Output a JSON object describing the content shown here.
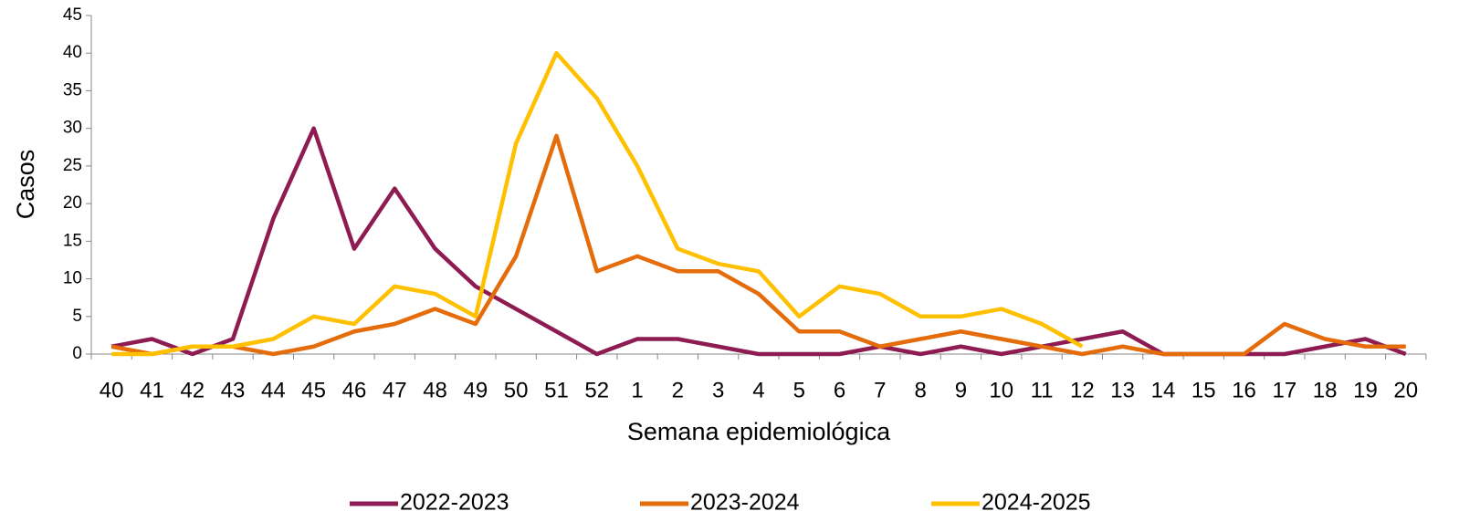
{
  "chart_data": {
    "type": "line",
    "x_label": "Semana epidemiológica",
    "y_label": "Casos",
    "categories": [
      "40",
      "41",
      "42",
      "43",
      "44",
      "45",
      "46",
      "47",
      "48",
      "49",
      "50",
      "51",
      "52",
      "1",
      "2",
      "3",
      "4",
      "5",
      "6",
      "7",
      "8",
      "9",
      "10",
      "11",
      "12",
      "13",
      "14",
      "15",
      "16",
      "17",
      "18",
      "19",
      "20"
    ],
    "series": [
      {
        "name": "2022-2023",
        "color": "#8e1b52",
        "values": [
          1,
          2,
          0,
          2,
          18,
          30,
          14,
          22,
          14,
          9,
          6,
          3,
          0,
          2,
          2,
          1,
          0,
          0,
          0,
          1,
          0,
          1,
          0,
          1,
          2,
          3,
          0,
          0,
          0,
          0,
          1,
          2,
          0
        ]
      },
      {
        "name": "2023-2024",
        "color": "#e46c0a",
        "values": [
          1,
          0,
          1,
          1,
          0,
          1,
          3,
          4,
          6,
          4,
          13,
          29,
          11,
          13,
          11,
          11,
          8,
          3,
          3,
          1,
          2,
          3,
          2,
          1,
          0,
          1,
          0,
          0,
          0,
          4,
          2,
          1,
          1
        ]
      },
      {
        "name": "2024-2025",
        "color": "#ffc000",
        "values": [
          0,
          0,
          1,
          1,
          2,
          5,
          4,
          9,
          8,
          5,
          28,
          40,
          34,
          25,
          14,
          12,
          11,
          5,
          9,
          8,
          5,
          5,
          6,
          4,
          1,
          null,
          null,
          null,
          null,
          null,
          null,
          null,
          null
        ]
      }
    ],
    "ylim": [
      0,
      45
    ],
    "yticks": [
      0,
      5,
      10,
      15,
      20,
      25,
      30,
      35,
      40,
      45
    ],
    "grid": false,
    "legend": "bottom"
  }
}
